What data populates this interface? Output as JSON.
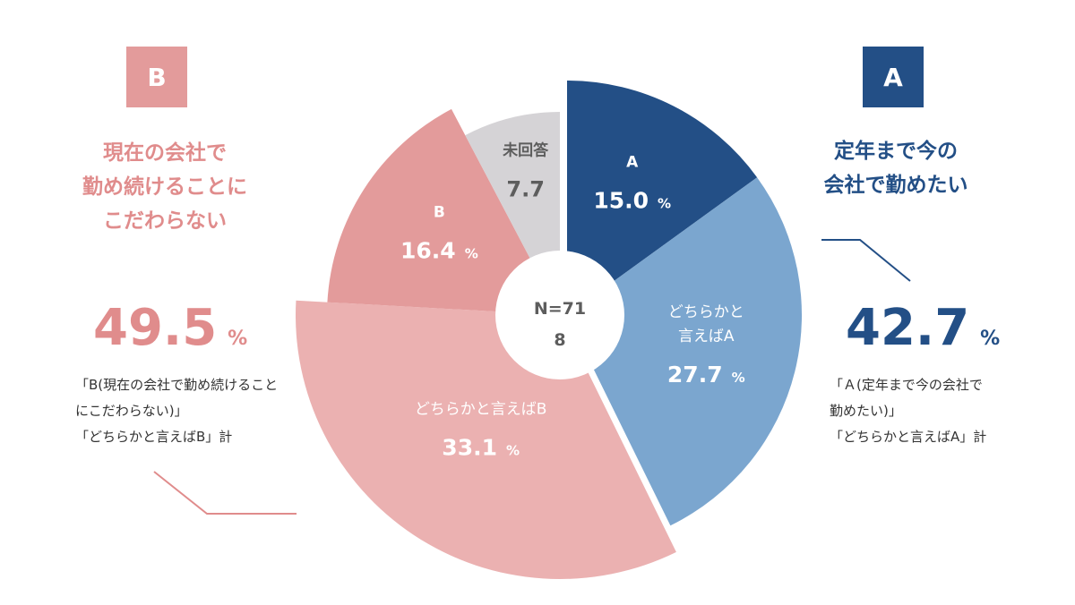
{
  "left_panel": {
    "badge": "B",
    "heading_lines": [
      "現在の会社で",
      "勤め続けることに",
      "こだわらない"
    ],
    "total_value": "49.5",
    "total_unit": "%",
    "note_lines": [
      "「B(現在の会社で勤め続けること",
      "にこだわらない)」",
      "「どちらかと言えばB」計"
    ],
    "color": "#e08c8c"
  },
  "right_panel": {
    "badge": "A",
    "heading_lines": [
      "定年まで今の",
      "会社で勤めたい"
    ],
    "total_value": "42.7",
    "total_unit": "%",
    "note_lines": [
      "「Ａ(定年まで今の会社で",
      "勤めたい)」",
      "「どちらかと言えばA」計"
    ],
    "color": "#234f86"
  },
  "chart_data": {
    "type": "pie",
    "center_label_lines": [
      "N=71",
      "8"
    ],
    "slices": [
      {
        "label_lines": [
          "A"
        ],
        "value": 15.0,
        "value_text": "15.0",
        "unit": "%",
        "color": "#234f86"
      },
      {
        "label_lines": [
          "どちらかと",
          "言えばA"
        ],
        "value": 27.7,
        "value_text": "27.7",
        "unit": "%",
        "color": "#7ba6cf"
      },
      {
        "label_lines": [
          "どちらかと言えばB"
        ],
        "value": 33.1,
        "value_text": "33.1",
        "unit": "%",
        "color": "#ebb1b1"
      },
      {
        "label_lines": [
          "B"
        ],
        "value": 16.4,
        "value_text": "16.4",
        "unit": "%",
        "color": "#e39b9b"
      },
      {
        "label_lines": [
          "未回答"
        ],
        "value": 7.7,
        "value_text": "7.7",
        "unit": "",
        "color": "#d5d3d6"
      }
    ]
  }
}
